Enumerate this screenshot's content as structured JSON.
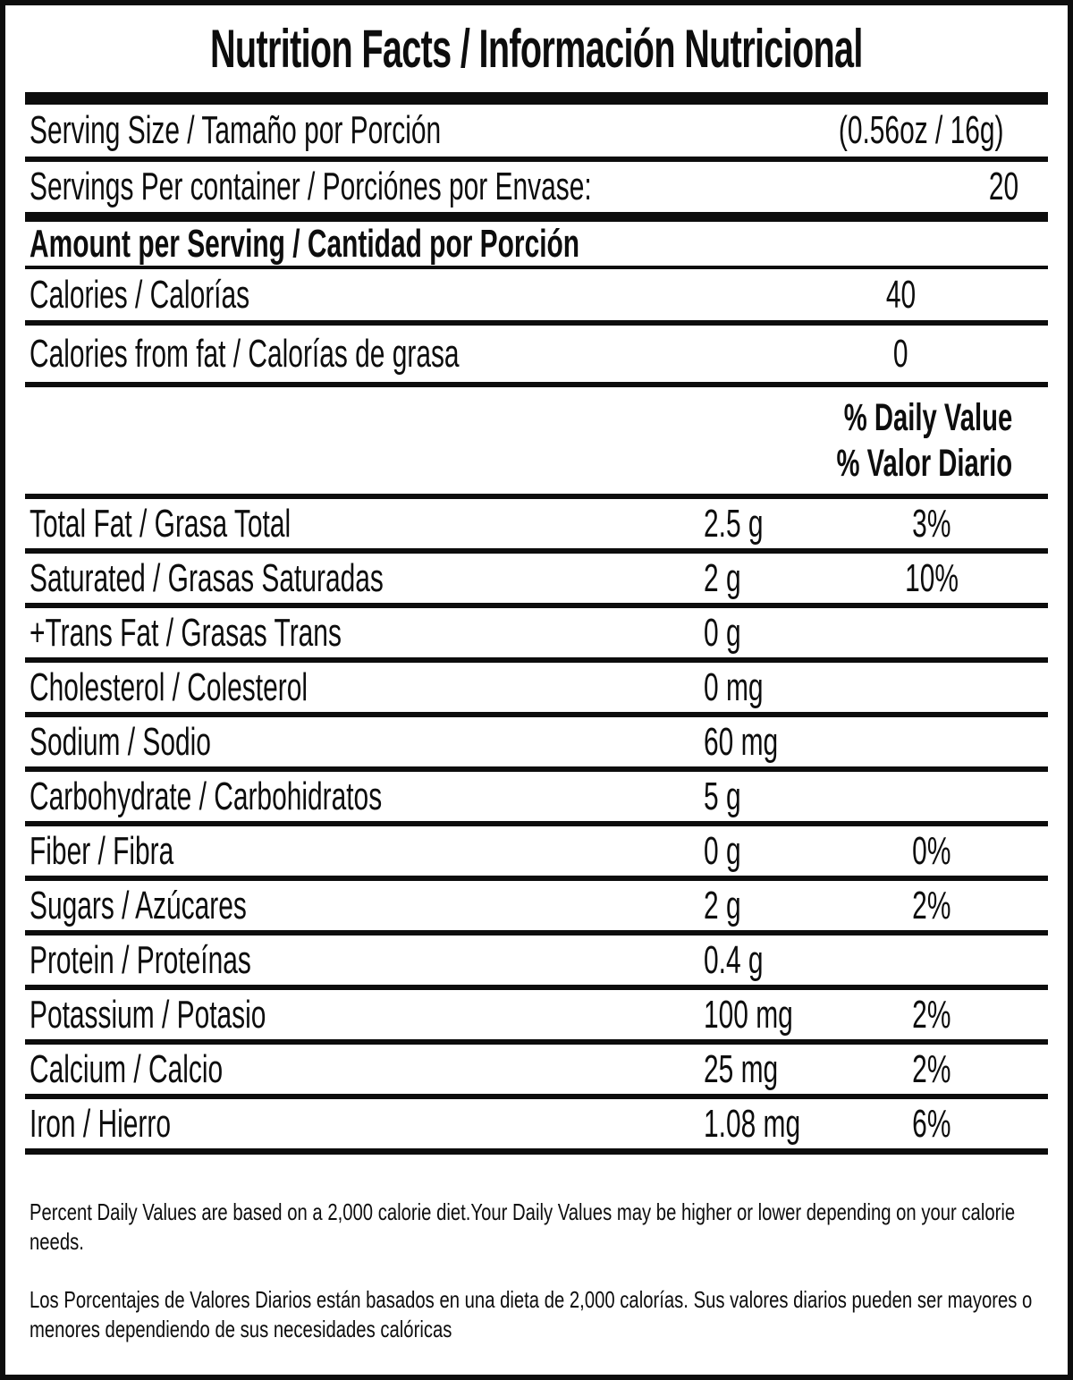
{
  "title": "Nutrition Facts / Información Nutricional",
  "serving": {
    "size_label": "Serving Size / Tamaño por Porción",
    "size_value": "(0.56oz / 16g)",
    "per_container_label": "Servings Per container / Porciónes por Envase:",
    "per_container_value": "20"
  },
  "amount_per_serving_header": "Amount per Serving / Cantidad por Porción",
  "calories": {
    "label": "Calories / Calorías",
    "value": "40"
  },
  "calories_from_fat": {
    "label": "Calories from fat / Calorías de grasa",
    "value": "0"
  },
  "daily_value_header": {
    "line1": "% Daily Value",
    "line2": "% Valor Diario"
  },
  "nutrients": [
    {
      "label": "Total Fat / Grasa Total",
      "amount": "2.5 g",
      "percent": "3%"
    },
    {
      "label": "Saturated / Grasas Saturadas",
      "amount": "2 g",
      "percent": "10%"
    },
    {
      "label": "+Trans Fat / Grasas Trans",
      "amount": "0 g",
      "percent": ""
    },
    {
      "label": "Cholesterol / Colesterol",
      "amount": "0 mg",
      "percent": ""
    },
    {
      "label": "Sodium / Sodio",
      "amount": "60 mg",
      "percent": ""
    },
    {
      "label": "Carbohydrate / Carbohidratos",
      "amount": "5 g",
      "percent": ""
    },
    {
      "label": "Fiber / Fibra",
      "amount": "0 g",
      "percent": "0%"
    },
    {
      "label": "Sugars / Azúcares",
      "amount": "2 g",
      "percent": "2%"
    },
    {
      "label": "Protein / Proteínas",
      "amount": "0.4 g",
      "percent": ""
    },
    {
      "label": "Potassium / Potasio",
      "amount": "100 mg",
      "percent": "2%"
    },
    {
      "label": "Calcium / Calcio",
      "amount": "25 mg",
      "percent": "2%"
    },
    {
      "label": "Iron / Hierro",
      "amount": "1.08 mg",
      "percent": "6%"
    }
  ],
  "footnotes": {
    "english": "Percent Daily Values are based on a 2,000 calorie diet.Your Daily Values may be higher or lower depending on your calorie needs.",
    "spanish": "Los Porcentajes de Valores Diarios están basados en una dieta de 2,000 calorías. Sus valores diarios pueden ser mayores o menores dependiendo de sus necesidades calóricas"
  },
  "colors": {
    "text": "#0d0d0d",
    "background": "#ffffff"
  }
}
